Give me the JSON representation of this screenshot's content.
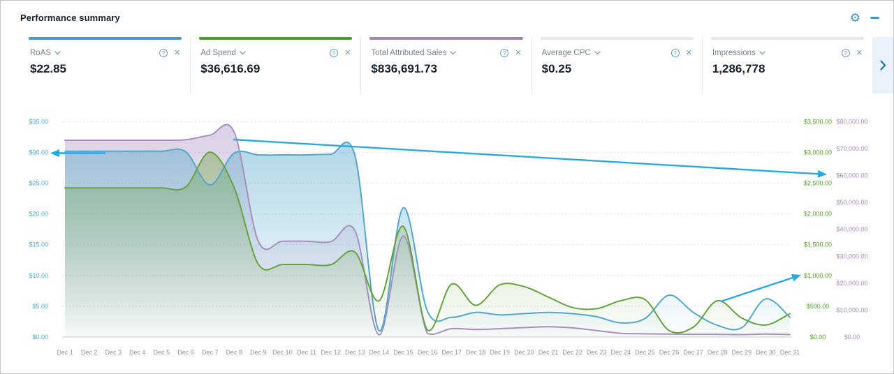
{
  "header": {
    "title": "Performance summary"
  },
  "icons": {
    "settings_glyph": "⚙",
    "help_glyph": "?",
    "close_glyph": "✕",
    "collapse": "minus",
    "metric_dropdown": "chevron-down",
    "cards_next": "chevron-right"
  },
  "colors": {
    "accent_blue": "#3f9ec6",
    "accent_green": "#4a9b2f",
    "accent_purple": "#9f86ba",
    "accent_gray": "#e7e7e7",
    "annotation_arrow": "#29a9e2",
    "axis_left_labels": "#4da7cf",
    "axis_right_inner_labels": "#53a02e",
    "axis_right_outer_labels": "#a78bbf",
    "grid": "#dcdfe2"
  },
  "cards": [
    {
      "label": "RoAS",
      "value": "$22.85",
      "color": "#3f9ec6"
    },
    {
      "label": "Ad Spend",
      "value": "$36,616.69",
      "color": "#4a9b2f"
    },
    {
      "label": "Total Attributed Sales",
      "value": "$836,691.73",
      "color": "#9f86ba"
    },
    {
      "label": "Average CPC",
      "value": "$0.25",
      "color": "#e7e7e7"
    },
    {
      "label": "Impressions",
      "value": "1,286,778",
      "color": "#e7e7e7"
    }
  ],
  "chart_data": {
    "type": "area",
    "grid": "dashed-horizontal",
    "legend": "none (metric cards act as legend)",
    "x_labels": [
      "Dec 1",
      "Dec 2",
      "Dec 3",
      "Dec 4",
      "Dec 5",
      "Dec 6",
      "Dec 7",
      "Dec 8",
      "Dec 9",
      "Dec 10",
      "Dec 11",
      "Dec 12",
      "Dec 13",
      "Dec 14",
      "Dec 15",
      "Dec 16",
      "Dec 17",
      "Dec 18",
      "Dec 19",
      "Dec 20",
      "Dec 21",
      "Dec 22",
      "Dec 23",
      "Dec 24",
      "Dec 25",
      "Dec 26",
      "Dec 27",
      "Dec 28",
      "Dec 29",
      "Dec 30",
      "Dec 31"
    ],
    "axes": {
      "left": {
        "range": [
          0,
          35
        ],
        "ticks": [
          "$35.00",
          "$30.00",
          "$25.00",
          "$20.00",
          "$15.00",
          "$10.00",
          "$5.00",
          "$0.00"
        ],
        "color": "#4da7cf"
      },
      "right_inner": {
        "range": [
          0,
          3500
        ],
        "ticks": [
          "$3,500.00",
          "$3,000.00",
          "$2,500.00",
          "$2,000.00",
          "$1,500.00",
          "$1,000.00",
          "$500.00",
          "$0.00"
        ],
        "color": "#53a02e"
      },
      "right_outer": {
        "range": [
          0,
          80000
        ],
        "ticks": [
          "$80,000.00",
          "$70,000.00",
          "$60,000.00",
          "$50,000.00",
          "$40,000.00",
          "$30,000.00",
          "$20,000.00",
          "$10,000.00",
          "$0.00"
        ],
        "color": "#a78bbf"
      }
    },
    "series": [
      {
        "name": "RoAS",
        "axis": "left",
        "color": "#55a7c9",
        "max": 35,
        "values": [
          30.2,
          30.2,
          30.2,
          30.2,
          30.2,
          30.1,
          24.7,
          29.9,
          29.6,
          29.6,
          29.6,
          29.7,
          29.5,
          1.0,
          21.0,
          4.2,
          3.2,
          4.0,
          3.6,
          3.8,
          4.0,
          3.8,
          3.3,
          2.3,
          3.0,
          6.8,
          4.0,
          1.9,
          1.5,
          6.2,
          3.2
        ]
      },
      {
        "name": "Ad Spend",
        "axis": "right_inner",
        "color": "#67a23e",
        "max": 3500,
        "values": [
          2425,
          2425,
          2425,
          2425,
          2425,
          2440,
          3005,
          2430,
          1185,
          1180,
          1180,
          1175,
          1380,
          590,
          1800,
          115,
          860,
          515,
          850,
          820,
          650,
          480,
          460,
          590,
          610,
          105,
          160,
          590,
          310,
          195,
          380
        ]
      },
      {
        "name": "Total Attributed Sales",
        "axis": "right_outer",
        "color": "#a78fbe",
        "max": 80000,
        "values": [
          73100,
          73100,
          73100,
          73100,
          73100,
          73300,
          75000,
          76200,
          35600,
          35600,
          35600,
          35400,
          39500,
          800,
          37500,
          1300,
          3100,
          2800,
          3100,
          3500,
          3800,
          3400,
          2400,
          1400,
          1200,
          1100,
          1000,
          1000,
          900,
          1100,
          900
        ]
      }
    ],
    "annotations": [
      {
        "type": "arrow",
        "points_to": "$30.00 tick on left axis",
        "from": [
          150,
          218.5
        ],
        "to": [
          71,
          218.5
        ]
      },
      {
        "type": "arrow",
        "points_to": "$60,000.00 tick on right outer axis",
        "from": [
          333,
          199
        ],
        "to": [
          1183,
          249
        ]
      },
      {
        "type": "arrow",
        "points_to": "$1,000.00 tick on right inner axis",
        "from": [
          1031,
          431
        ],
        "to": [
          1146,
          393
        ]
      }
    ]
  }
}
